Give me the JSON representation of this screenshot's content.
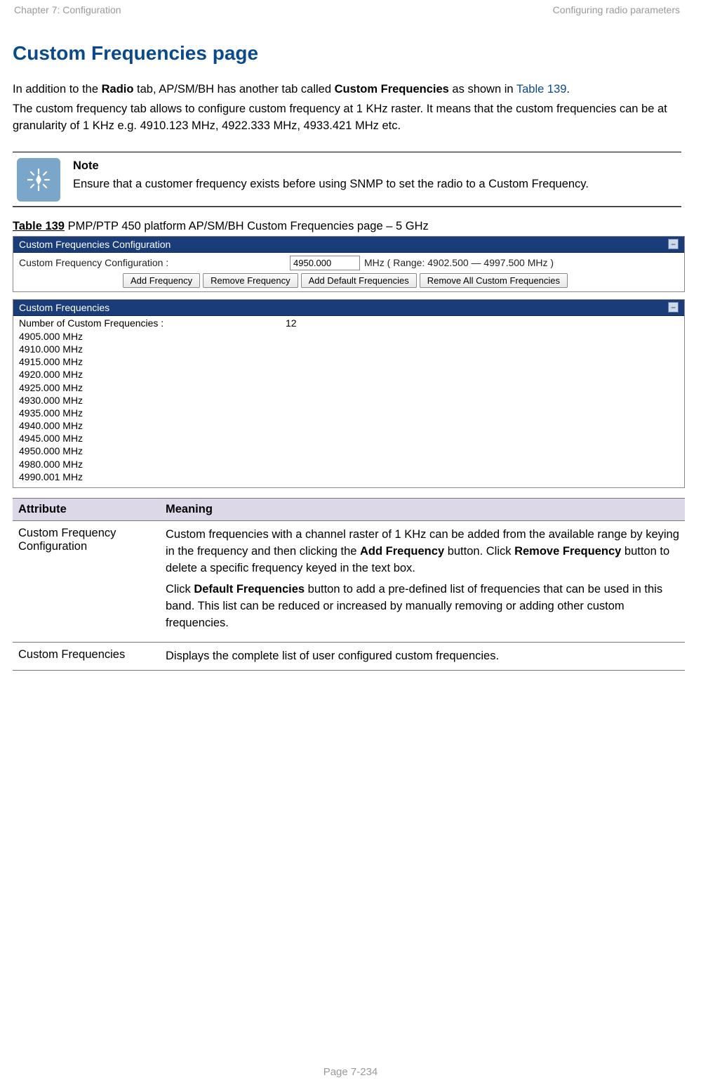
{
  "header": {
    "left": "Chapter 7:  Configuration",
    "right": "Configuring radio parameters"
  },
  "title": "Custom Frequencies page",
  "intro": {
    "p1_pre": "In addition to the ",
    "p1_b1": "Radio",
    "p1_mid": " tab, AP/SM/BH has another tab called ",
    "p1_b2": "Custom Frequencies",
    "p1_post": " as shown in ",
    "p1_link": "Table 139",
    "p1_end": ".",
    "p2": "The custom frequency tab allows to configure custom frequency at 1 KHz raster. It means that the custom frequencies can be at granularity of 1 KHz e.g. 4910.123 MHz, 4922.333 MHz, 4933.421 MHz etc."
  },
  "note": {
    "label": "Note",
    "text": "Ensure that a customer frequency exists before using SNMP to set the radio to a Custom Frequency."
  },
  "caption": {
    "num": "Table 139",
    "text": " PMP/PTP 450 platform AP/SM/BH Custom Frequencies page – 5 GHz"
  },
  "panel1": {
    "title": "Custom Frequencies Configuration",
    "cfg_label": "Custom Frequency Configuration :",
    "cfg_value": "4950.000",
    "cfg_range": "MHz ( Range: 4902.500 — 4997.500 MHz )",
    "buttons": {
      "add": "Add Frequency",
      "remove": "Remove Frequency",
      "add_default": "Add Default Frequencies",
      "remove_all": "Remove All Custom Frequencies"
    }
  },
  "panel2": {
    "title": "Custom Frequencies",
    "count_label": "Number of Custom Frequencies :",
    "count_value": "12",
    "items": [
      "4905.000 MHz",
      "4910.000 MHz",
      "4915.000 MHz",
      "4920.000 MHz",
      "4925.000 MHz",
      "4930.000 MHz",
      "4935.000 MHz",
      "4940.000 MHz",
      "4945.000 MHz",
      "4950.000 MHz",
      "4980.000 MHz",
      "4990.001 MHz"
    ]
  },
  "table": {
    "head_attr": "Attribute",
    "head_mean": "Meaning",
    "rows": [
      {
        "attr": "Custom Frequency Configuration",
        "mean_p1_pre": "Custom frequencies with a channel raster of 1 KHz can be added from the available range by keying in the frequency and then clicking the ",
        "mean_p1_b1": "Add Frequency",
        "mean_p1_mid": " button. Click ",
        "mean_p1_b2": "Remove Frequency",
        "mean_p1_post": " button to delete a specific frequency keyed in the text box.",
        "mean_p2_pre": "Click ",
        "mean_p2_b1": "Default Frequencies",
        "mean_p2_post": " button to add a pre-defined list of frequencies that can be used in this band. This list can be reduced or increased by manually removing or adding other custom frequencies."
      },
      {
        "attr": "Custom Frequencies",
        "mean": "Displays the complete list of user configured custom frequencies."
      }
    ]
  },
  "footer": "Page 7-234",
  "colors": {
    "heading": "#0b4a8a",
    "header_gray": "#9a9a9a",
    "panel_bg": "#1a3d7a",
    "note_icon_bg": "#7aa7c9",
    "table_head_bg": "#dcd8e8"
  }
}
